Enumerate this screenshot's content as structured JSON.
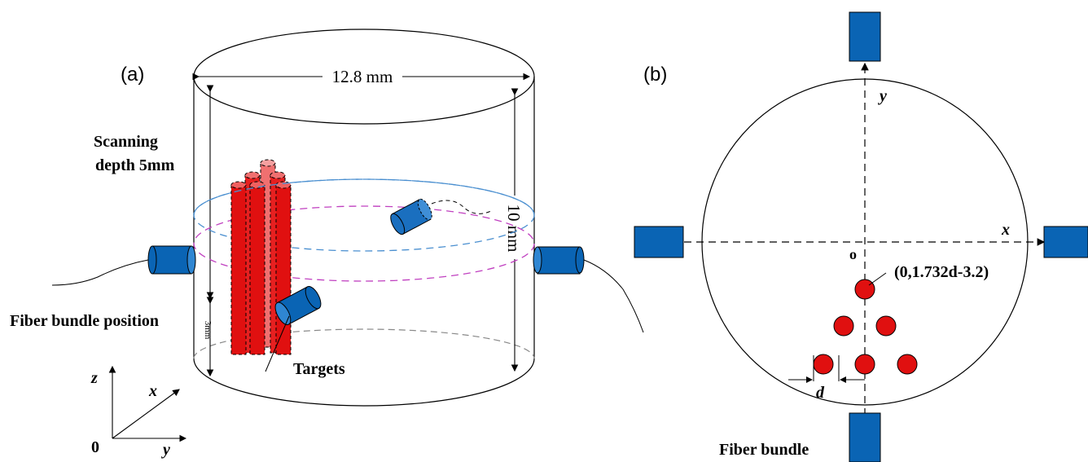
{
  "panel_a": {
    "label": "(a)",
    "diameter_label": "12.8 mm",
    "height_label": "10 mm",
    "scan_label_line1": "Scanning",
    "scan_label_line2": "depth 5mm",
    "fiber_label": "Fiber bundle position",
    "small_depth_label": "3mm",
    "targets_label": "Targets",
    "axis_z": "z",
    "axis_x": "x",
    "axis_y": "y",
    "axis_origin": "0"
  },
  "panel_b": {
    "label": "(b)",
    "axis_x": "x",
    "axis_y": "y",
    "origin": "o",
    "coord_label": "(0,1.732d-3.2)",
    "d_label": "d",
    "fiber_label": "Fiber bundle"
  },
  "colors": {
    "target_red": "#e01010",
    "fiber_blue": "#0a64b4",
    "ring_blue": "#4a8fd0",
    "ring_magenta": "#c040c0"
  }
}
